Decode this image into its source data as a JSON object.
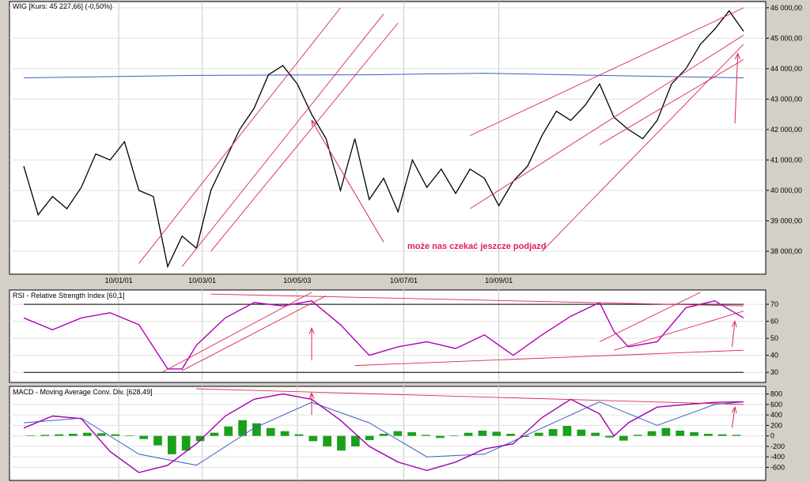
{
  "colors": {
    "price": "#000000",
    "ma": "#3a5fc0",
    "trend": "#d8285a",
    "rsi": "#b000b8",
    "macd": "#a000b0",
    "signal": "#3a5fc0",
    "hist": "#1aa01a",
    "level": "#000000",
    "bg": "#ffffff",
    "frame": "#d4d0c8"
  },
  "chart_data": [
    {
      "type": "line",
      "id": "price",
      "title": "WIG [Kurs: 45 227,66] (-0,50%)",
      "xticks": [
        "10/01/01",
        "10/03/01",
        "10/05/03",
        "10/07/01",
        "10/09/01"
      ],
      "yticks": [
        "38 000,00",
        "39 000,00",
        "40 000,00",
        "41 000,00",
        "42 000,00",
        "43 000,00",
        "44 000,00",
        "45 000,00",
        "46 000,00"
      ],
      "ylim": [
        37300,
        46100
      ],
      "annotation": "może nas czekać jeszcze podjazd",
      "series": [
        {
          "x": [
            0,
            5,
            10,
            15,
            20,
            25,
            30,
            35,
            40,
            45,
            50,
            55,
            60,
            65,
            70,
            75,
            80,
            85,
            90,
            95,
            100,
            105,
            110,
            115,
            120,
            125,
            130,
            135,
            140,
            145,
            150,
            155,
            160,
            165,
            170,
            175,
            180,
            185,
            190,
            195,
            200,
            205,
            210,
            215,
            220,
            225,
            230,
            235,
            240,
            245,
            250
          ],
          "values": [
            40800,
            39200,
            39800,
            39400,
            40100,
            41200,
            41000,
            41600,
            40000,
            39800,
            37500,
            38500,
            38100,
            40000,
            41000,
            42000,
            42700,
            43800,
            44100,
            43500,
            42500,
            41700,
            40000,
            41700,
            39700,
            40400,
            39300,
            41000,
            40100,
            40700,
            39900,
            40700,
            40400,
            39500,
            40300,
            40800,
            41800,
            42600,
            42300,
            42800,
            43500,
            42400,
            42000,
            41700,
            42300,
            43500,
            44000,
            44800,
            45300,
            45900,
            45227
          ]
        }
      ],
      "ma": {
        "x": [
          0,
          60,
          120,
          160,
          200,
          250
        ],
        "values": [
          43700,
          43780,
          43800,
          43850,
          43780,
          43700
        ]
      }
    },
    {
      "type": "line",
      "id": "rsi",
      "title": "RSI - Relative Strength Index [60,1]",
      "yticks": [
        "30",
        "40",
        "50",
        "60",
        "70"
      ],
      "ylim": [
        25,
        77
      ],
      "levels": [
        30,
        70
      ],
      "series": [
        {
          "x": [
            0,
            10,
            20,
            30,
            40,
            50,
            55,
            60,
            70,
            80,
            90,
            100,
            110,
            120,
            130,
            140,
            150,
            160,
            170,
            180,
            190,
            200,
            205,
            210,
            220,
            230,
            240,
            250
          ],
          "values": [
            62,
            55,
            62,
            65,
            58,
            32,
            32,
            46,
            62,
            71,
            69,
            72,
            58,
            40,
            45,
            48,
            44,
            52,
            40,
            52,
            63,
            71,
            54,
            45,
            48,
            68,
            72,
            62
          ]
        }
      ]
    },
    {
      "type": "line",
      "id": "macd",
      "title": "MACD - Moving Average Conv. Div. [628,49]",
      "yticks": [
        "-600",
        "-400",
        "-200",
        "0",
        "200",
        "400",
        "600",
        "800"
      ],
      "ylim": [
        -820,
        900
      ],
      "series": [
        {
          "name": "MACD",
          "x": [
            0,
            10,
            20,
            30,
            40,
            50,
            60,
            70,
            80,
            90,
            100,
            110,
            120,
            130,
            140,
            150,
            160,
            170,
            180,
            190,
            200,
            205,
            210,
            220,
            230,
            240,
            250
          ],
          "values": [
            150,
            380,
            330,
            -300,
            -700,
            -560,
            -150,
            380,
            700,
            800,
            700,
            300,
            -200,
            -500,
            -660,
            -500,
            -250,
            -150,
            350,
            700,
            420,
            0,
            250,
            550,
            600,
            640,
            650
          ]
        },
        {
          "name": "Signal",
          "x": [
            0,
            20,
            40,
            60,
            80,
            100,
            120,
            140,
            160,
            180,
            200,
            220,
            240,
            250
          ],
          "values": [
            250,
            340,
            -350,
            -560,
            150,
            640,
            250,
            -400,
            -350,
            150,
            650,
            200,
            600,
            650
          ]
        }
      ],
      "hist": [
        10,
        20,
        30,
        40,
        60,
        50,
        30,
        10,
        -60,
        -180,
        -350,
        -280,
        -100,
        60,
        180,
        300,
        240,
        150,
        90,
        30,
        -100,
        -200,
        -280,
        -200,
        -80,
        40,
        90,
        70,
        20,
        -40,
        10,
        60,
        100,
        80,
        40,
        -20,
        60,
        130,
        190,
        120,
        60,
        -30,
        -90,
        20,
        90,
        150,
        100,
        70,
        40,
        30,
        20
      ]
    }
  ]
}
